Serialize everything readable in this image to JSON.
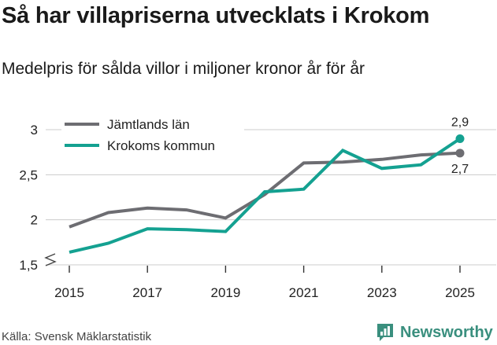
{
  "header": {
    "title": "Så har villapriserna utvecklats i Krokom",
    "subtitle": "Medelpris för sålda villor i miljoner kronor år för år"
  },
  "footer": {
    "source": "Källa: Svensk Mäklarstatistik",
    "brand": "Newsworthy"
  },
  "colors": {
    "jamtland": "#6d6d72",
    "krokom": "#14a191",
    "grid": "#cccccc",
    "axis": "#333333",
    "brand": "#3a8f7e"
  },
  "chart_data": {
    "type": "line",
    "title": "Så har villapriserna utvecklats i Krokom",
    "subtitle": "Medelpris för sålda villor i miljoner kronor år för år",
    "xlabel": "",
    "ylabel": "",
    "x": [
      2015,
      2016,
      2017,
      2018,
      2019,
      2020,
      2021,
      2022,
      2023,
      2024,
      2025
    ],
    "xticks": [
      "2015",
      "2017",
      "2019",
      "2021",
      "2023",
      "2025"
    ],
    "yticks": [
      "1,5",
      "2",
      "2,5",
      "3"
    ],
    "ylim": [
      1.5,
      3.0
    ],
    "axis_break": true,
    "grid": true,
    "legend_position": "top-left",
    "series": [
      {
        "name": "Jämtlands län",
        "color": "#6d6d72",
        "values": [
          1.92,
          2.08,
          2.13,
          2.11,
          2.02,
          2.28,
          2.63,
          2.64,
          2.67,
          2.72,
          2.74
        ],
        "end_label": "2,7"
      },
      {
        "name": "Krokoms kommun",
        "color": "#14a191",
        "values": [
          1.64,
          1.74,
          1.9,
          1.89,
          1.87,
          2.31,
          2.34,
          2.77,
          2.57,
          2.61,
          2.9
        ],
        "end_label": "2,9"
      }
    ]
  }
}
